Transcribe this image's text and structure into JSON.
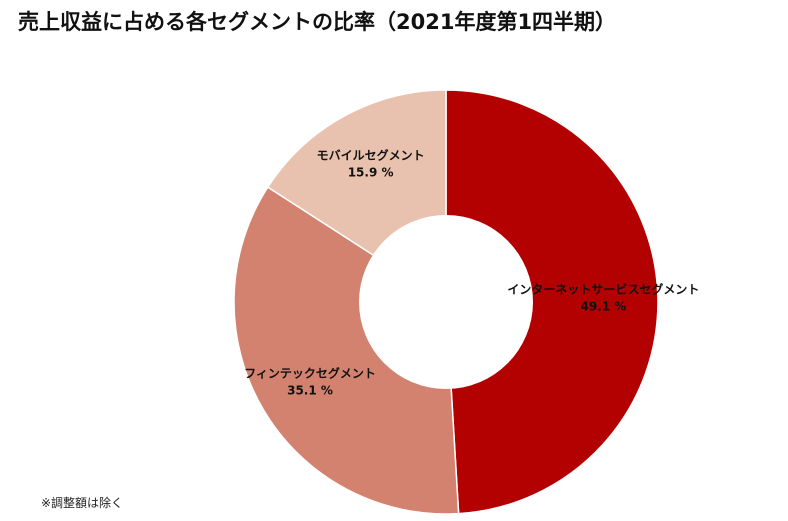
{
  "chart_data": {
    "type": "pie",
    "title": "売上収益に占める各セグメントの比率（2021年度第1四半期）",
    "categories": [
      "インターネットサービスセグメント",
      "フィンテックセグメント",
      "モバイルセグメント"
    ],
    "values": [
      49.1,
      35.1,
      15.9
    ],
    "value_labels": [
      "49.1 %",
      "35.1 %",
      "15.9 %"
    ],
    "unit": "%",
    "donut": true,
    "colors": [
      "#b30000",
      "#d2826e",
      "#e8c2ae"
    ],
    "legend": "none",
    "footnote": "※調整額は除く"
  }
}
